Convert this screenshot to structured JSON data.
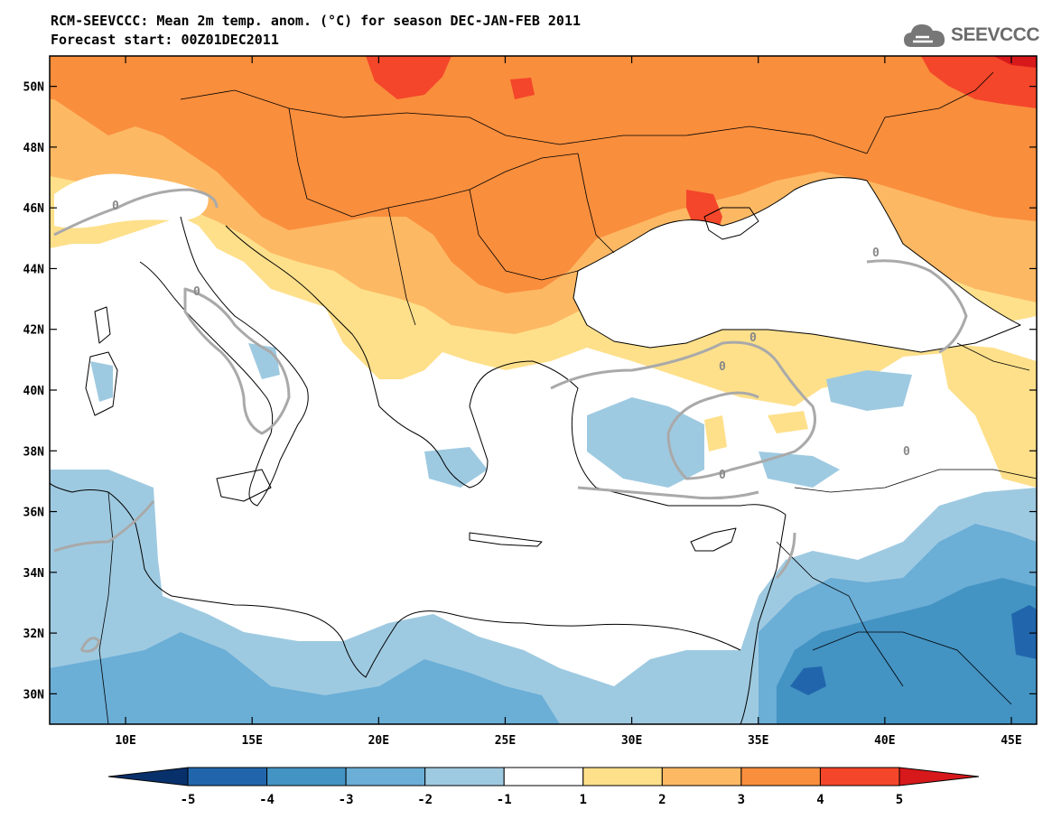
{
  "title": "RCM-SEEVCCC: Mean 2m temp. anom. (°C) for season DEC-JAN-FEB 2011",
  "subtitle": "Forecast start: 00Z01DEC2011",
  "logo_text": "SEEVCCC",
  "logo_icon": "cloud-icon",
  "map": {
    "lon_range": [
      7,
      46
    ],
    "lat_range": [
      29,
      51
    ],
    "lat_ticks": [
      "30N",
      "32N",
      "34N",
      "36N",
      "38N",
      "40N",
      "42N",
      "44N",
      "46N",
      "48N",
      "50N"
    ],
    "lon_ticks": [
      "10E",
      "15E",
      "20E",
      "25E",
      "30E",
      "35E",
      "40E",
      "45E"
    ],
    "contour_label": "0"
  },
  "colorbar": {
    "levels": [
      "-5",
      "-4",
      "-3",
      "-2",
      "-1",
      "1",
      "2",
      "3",
      "4",
      "5"
    ],
    "colors": [
      "#08306b",
      "#2166ac",
      "#4393c3",
      "#6baed6",
      "#9ecae1",
      "#ffffff",
      "#fee08b",
      "#fdb863",
      "#f98e3d",
      "#f4462a",
      "#d7191c"
    ]
  }
}
